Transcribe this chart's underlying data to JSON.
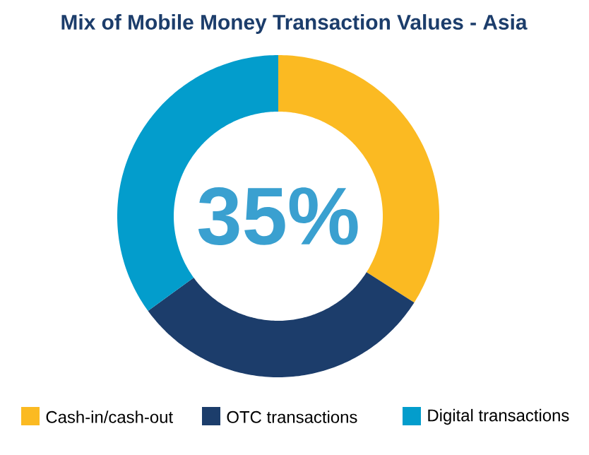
{
  "chart_data": {
    "type": "donut",
    "title": "Mix of Mobile Money Transaction Values - Asia",
    "categories": [
      "Cash-in/cash-out",
      "OTC transactions",
      "Digital transactions"
    ],
    "values": [
      34,
      31,
      35
    ],
    "colors": [
      "#fbba22",
      "#1c3d6b",
      "#039dcc"
    ],
    "annotations": [
      "35%"
    ],
    "legend": "bottom"
  }
}
